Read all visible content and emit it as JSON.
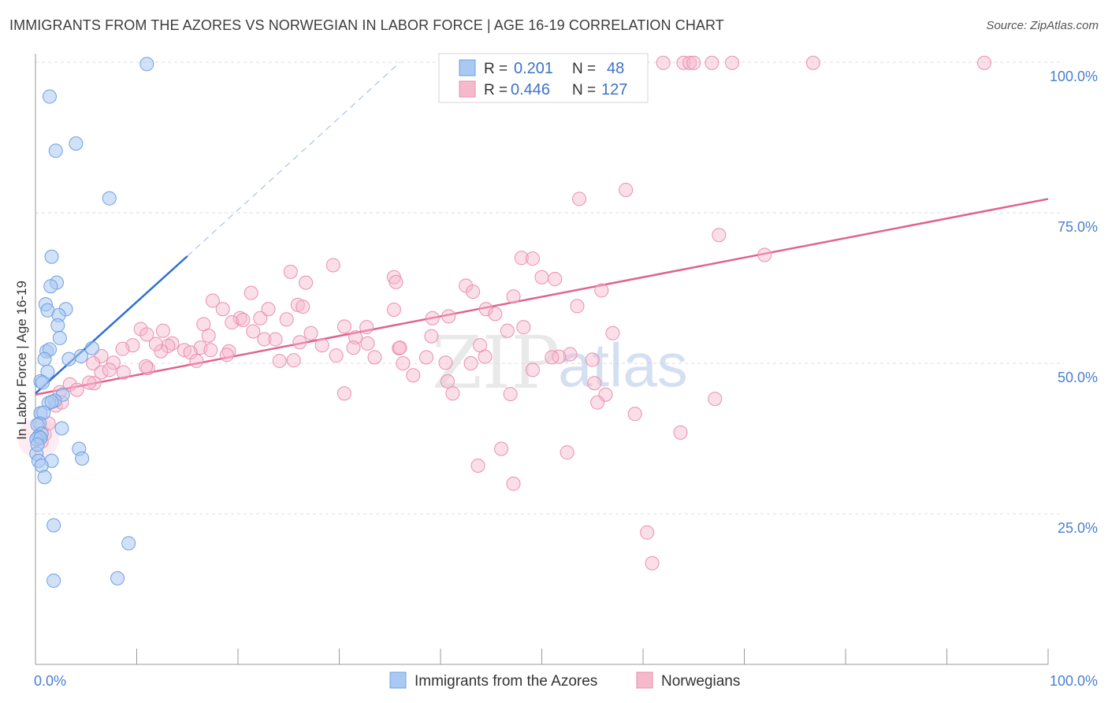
{
  "header": {
    "title": "IMMIGRANTS FROM THE AZORES VS NORWEGIAN IN LABOR FORCE | AGE 16-19 CORRELATION CHART",
    "source": "Source: ZipAtlas.com"
  },
  "legend": {
    "blue": {
      "r_label": "R =",
      "r_value": "0.201",
      "n_label": "N =",
      "n_value": "48"
    },
    "pink": {
      "r_label": "R =",
      "r_value": "0.446",
      "n_label": "N =",
      "n_value": "127"
    }
  },
  "bottom_legend": {
    "series1": "Immigrants from the Azores",
    "series2": "Norwegians"
  },
  "watermark": {
    "zip": "ZIP",
    "atlas": "atlas"
  },
  "colors": {
    "blue_fill": "#a9c8f2",
    "blue_stroke": "#6fa0e0",
    "blue_line": "#2f6fd1",
    "pink_fill": "#f6b9cc",
    "pink_stroke": "#ea8fae",
    "pink_line": "#e0638f",
    "grid": "#dddddd",
    "tick_text": "#4a7fd0"
  },
  "chart_data": {
    "type": "scatter",
    "title": "IMMIGRANTS FROM THE AZORES VS NORWEGIAN IN LABOR FORCE | AGE 16-19 CORRELATION CHART",
    "xlabel": "",
    "ylabel": "In Labor Force | Age 16-19",
    "xlim": [
      0,
      100
    ],
    "ylim": [
      0,
      100
    ],
    "x_tick_labels": [
      "0.0%",
      "100.0%"
    ],
    "y_tick_labels": [
      "25.0%",
      "50.0%",
      "75.0%",
      "100.0%"
    ],
    "y_ticks": [
      25,
      50,
      75,
      100
    ],
    "x_minor_ticks": [
      0,
      10,
      20,
      30,
      40,
      50,
      60,
      70,
      80,
      90,
      100
    ],
    "grid": true,
    "legend_position": "top-center",
    "series": [
      {
        "name": "Immigrants from the Azores",
        "color": "#a9c8f2",
        "points": [
          [
            11.0,
            99.7
          ],
          [
            1.4,
            94.3
          ],
          [
            2.0,
            85.3
          ],
          [
            4.0,
            86.5
          ],
          [
            7.3,
            77.4
          ],
          [
            1.6,
            67.7
          ],
          [
            2.1,
            63.4
          ],
          [
            1.5,
            62.8
          ],
          [
            1.0,
            59.8
          ],
          [
            3.0,
            59.0
          ],
          [
            1.2,
            58.8
          ],
          [
            2.3,
            58.0
          ],
          [
            2.2,
            56.3
          ],
          [
            2.4,
            54.2
          ],
          [
            5.6,
            52.5
          ],
          [
            1.1,
            52.0
          ],
          [
            1.4,
            52.3
          ],
          [
            4.5,
            51.2
          ],
          [
            3.3,
            50.7
          ],
          [
            0.9,
            50.7
          ],
          [
            1.2,
            48.6
          ],
          [
            0.5,
            47.0
          ],
          [
            0.7,
            46.8
          ],
          [
            2.7,
            44.8
          ],
          [
            1.9,
            43.8
          ],
          [
            1.3,
            43.4
          ],
          [
            1.6,
            43.6
          ],
          [
            0.5,
            41.7
          ],
          [
            0.8,
            41.8
          ],
          [
            0.4,
            40.0
          ],
          [
            0.2,
            39.8
          ],
          [
            2.6,
            39.2
          ],
          [
            0.6,
            38.3
          ],
          [
            0.3,
            37.8
          ],
          [
            0.1,
            37.4
          ],
          [
            0.5,
            37.6
          ],
          [
            4.3,
            35.8
          ],
          [
            0.1,
            35.0
          ],
          [
            0.3,
            33.8
          ],
          [
            1.6,
            33.8
          ],
          [
            4.6,
            34.2
          ],
          [
            0.6,
            33.0
          ],
          [
            0.9,
            31.1
          ],
          [
            1.8,
            23.1
          ],
          [
            9.2,
            20.1
          ],
          [
            1.8,
            13.9
          ],
          [
            8.1,
            14.3
          ],
          [
            0.2,
            36.5
          ]
        ]
      },
      {
        "name": "Norwegians",
        "color": "#f6b9cc",
        "points": [
          [
            62.0,
            99.9
          ],
          [
            64.0,
            99.9
          ],
          [
            64.6,
            99.9
          ],
          [
            65.0,
            99.9
          ],
          [
            66.8,
            99.9
          ],
          [
            68.8,
            99.9
          ],
          [
            76.8,
            99.9
          ],
          [
            93.7,
            99.9
          ],
          [
            58.3,
            78.8
          ],
          [
            53.7,
            77.3
          ],
          [
            67.5,
            71.3
          ],
          [
            72.0,
            68.0
          ],
          [
            48.0,
            67.5
          ],
          [
            49.1,
            67.4
          ],
          [
            29.4,
            66.3
          ],
          [
            25.2,
            65.2
          ],
          [
            35.4,
            64.3
          ],
          [
            50.0,
            64.3
          ],
          [
            51.3,
            64.0
          ],
          [
            35.6,
            63.5
          ],
          [
            42.5,
            62.9
          ],
          [
            55.9,
            62.1
          ],
          [
            26.7,
            63.4
          ],
          [
            21.3,
            61.7
          ],
          [
            43.2,
            61.9
          ],
          [
            47.2,
            61.1
          ],
          [
            17.5,
            60.4
          ],
          [
            25.9,
            59.7
          ],
          [
            26.4,
            59.4
          ],
          [
            53.5,
            59.5
          ],
          [
            18.5,
            59.0
          ],
          [
            44.5,
            59.0
          ],
          [
            35.4,
            58.9
          ],
          [
            40.8,
            57.8
          ],
          [
            45.4,
            58.2
          ],
          [
            20.2,
            57.5
          ],
          [
            22.2,
            57.5
          ],
          [
            39.2,
            57.5
          ],
          [
            24.8,
            57.3
          ],
          [
            19.4,
            56.8
          ],
          [
            16.6,
            56.5
          ],
          [
            30.5,
            56.1
          ],
          [
            32.7,
            56.0
          ],
          [
            48.2,
            56.0
          ],
          [
            10.4,
            55.7
          ],
          [
            12.6,
            55.4
          ],
          [
            11.0,
            54.8
          ],
          [
            21.5,
            55.3
          ],
          [
            27.2,
            55.0
          ],
          [
            17.1,
            54.6
          ],
          [
            46.6,
            55.4
          ],
          [
            57.0,
            55.0
          ],
          [
            31.6,
            54.3
          ],
          [
            39.1,
            54.5
          ],
          [
            22.6,
            54.0
          ],
          [
            23.7,
            54.0
          ],
          [
            9.6,
            53.0
          ],
          [
            13.5,
            53.3
          ],
          [
            26.1,
            53.5
          ],
          [
            32.8,
            53.3
          ],
          [
            13.1,
            52.9
          ],
          [
            16.3,
            52.6
          ],
          [
            28.3,
            53.0
          ],
          [
            35.9,
            52.5
          ],
          [
            43.9,
            53.0
          ],
          [
            8.6,
            52.4
          ],
          [
            14.7,
            52.2
          ],
          [
            19.1,
            52.0
          ],
          [
            29.7,
            51.3
          ],
          [
            31.4,
            52.6
          ],
          [
            36.0,
            52.6
          ],
          [
            44.4,
            51.1
          ],
          [
            52.8,
            51.5
          ],
          [
            12.4,
            52.0
          ],
          [
            6.5,
            51.2
          ],
          [
            18.9,
            51.4
          ],
          [
            33.5,
            51.0
          ],
          [
            38.6,
            51.0
          ],
          [
            51.7,
            51.1
          ],
          [
            15.3,
            51.8
          ],
          [
            17.3,
            52.2
          ],
          [
            5.7,
            50.0
          ],
          [
            7.7,
            50.1
          ],
          [
            15.9,
            50.4
          ],
          [
            24.1,
            50.4
          ],
          [
            36.3,
            50.0
          ],
          [
            40.5,
            50.1
          ],
          [
            43.0,
            50.0
          ],
          [
            51.0,
            51.0
          ],
          [
            55.0,
            50.6
          ],
          [
            6.5,
            48.5
          ],
          [
            7.3,
            48.9
          ],
          [
            8.7,
            48.5
          ],
          [
            11.1,
            49.2
          ],
          [
            25.5,
            50.5
          ],
          [
            37.3,
            48.0
          ],
          [
            40.7,
            47.0
          ],
          [
            49.1,
            48.9
          ],
          [
            5.8,
            46.7
          ],
          [
            3.4,
            46.5
          ],
          [
            5.3,
            46.8
          ],
          [
            2.4,
            45.2
          ],
          [
            4.1,
            45.6
          ],
          [
            41.2,
            45.0
          ],
          [
            46.9,
            44.9
          ],
          [
            55.2,
            46.7
          ],
          [
            56.3,
            44.8
          ],
          [
            52.5,
            35.2
          ],
          [
            55.5,
            43.5
          ],
          [
            59.2,
            41.6
          ],
          [
            67.1,
            44.1
          ],
          [
            63.7,
            38.5
          ],
          [
            46.0,
            35.8
          ],
          [
            43.7,
            33.0
          ],
          [
            47.2,
            30.0
          ],
          [
            60.4,
            21.9
          ],
          [
            60.9,
            16.8
          ],
          [
            2.0,
            43.0
          ],
          [
            1.3,
            40.0
          ],
          [
            0.9,
            38.2
          ],
          [
            0.6,
            37.0
          ],
          [
            2.6,
            43.5
          ],
          [
            23.0,
            59.0
          ],
          [
            10.9,
            49.5
          ],
          [
            20.5,
            57.2
          ],
          [
            11.9,
            53.2
          ],
          [
            30.5,
            45.0
          ]
        ]
      }
    ],
    "trend_lines": [
      {
        "series": "Immigrants from the Azores",
        "x": [
          0,
          15
        ],
        "y": [
          45.0,
          67.8
        ],
        "dashed_extension_to": [
          36,
          100
        ]
      },
      {
        "series": "Norwegians",
        "x": [
          0,
          100
        ],
        "y": [
          44.8,
          77.3
        ]
      }
    ]
  }
}
